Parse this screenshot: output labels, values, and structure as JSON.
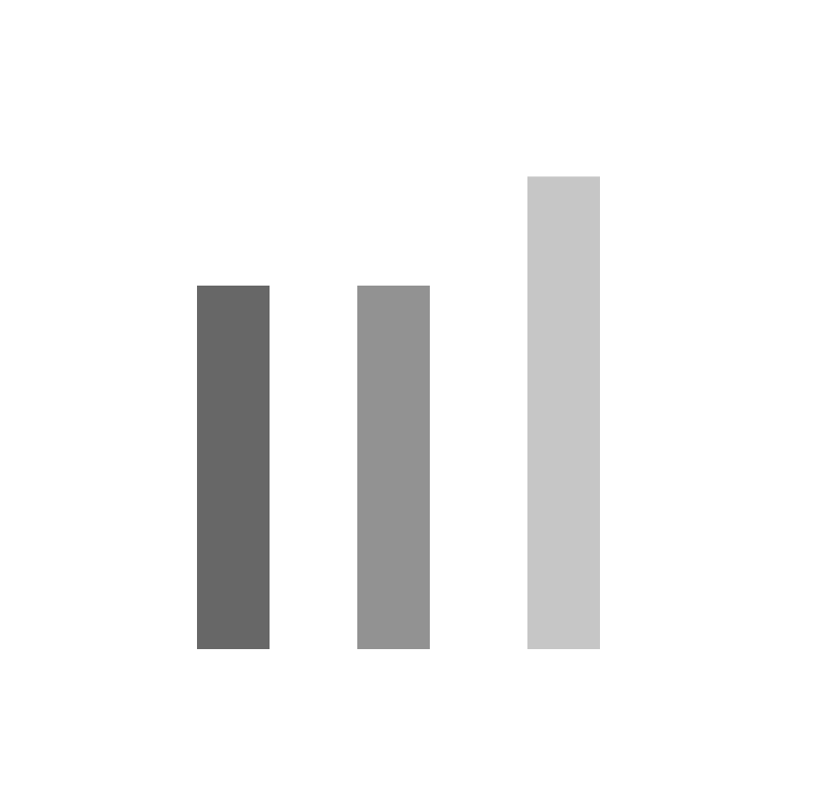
{
  "chart_data": {
    "type": "bar",
    "categories": [
      "",
      "",
      ""
    ],
    "values": [
      2.0,
      2.0,
      2.6
    ],
    "colors": [
      "#676767",
      "#929292",
      "#c6c6c6"
    ],
    "title": "",
    "xlabel": "",
    "ylabel": "",
    "ylim": [
      0,
      3
    ],
    "grid": false,
    "legend": "none"
  }
}
